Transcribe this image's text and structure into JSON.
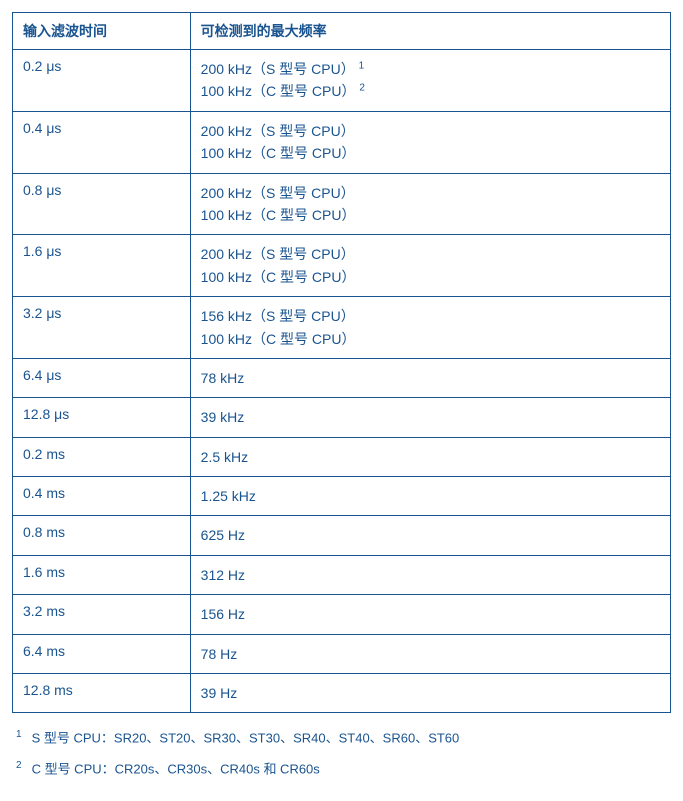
{
  "table": {
    "columns": [
      "输入滤波时间",
      "可检测到的最大频率"
    ],
    "col_widths": [
      "27%",
      "73%"
    ],
    "border_color": "#1a5490",
    "text_color": "#1a5490",
    "header_fontweight": "bold",
    "cell_fontsize": 14,
    "rows": [
      {
        "filter_time": "0.2 μs",
        "lines": [
          {
            "text": "200 kHz（S 型号 CPU）",
            "sup": "1"
          },
          {
            "text": "100 kHz（C 型号 CPU）",
            "sup": "2"
          }
        ]
      },
      {
        "filter_time": "0.4 μs",
        "lines": [
          {
            "text": "200 kHz（S 型号 CPU）"
          },
          {
            "text": "100 kHz（C 型号 CPU）"
          }
        ]
      },
      {
        "filter_time": "0.8 μs",
        "lines": [
          {
            "text": "200 kHz（S 型号 CPU）"
          },
          {
            "text": "100 kHz（C 型号 CPU）"
          }
        ]
      },
      {
        "filter_time": "1.6 μs",
        "lines": [
          {
            "text": "200 kHz（S 型号 CPU）"
          },
          {
            "text": "100 kHz（C 型号 CPU）"
          }
        ]
      },
      {
        "filter_time": "3.2 μs",
        "lines": [
          {
            "text": "156 kHz（S 型号 CPU）"
          },
          {
            "text": "100 kHz（C 型号 CPU）"
          }
        ]
      },
      {
        "filter_time": "6.4 μs",
        "lines": [
          {
            "text": "78 kHz"
          }
        ]
      },
      {
        "filter_time": "12.8 μs",
        "lines": [
          {
            "text": "39 kHz"
          }
        ]
      },
      {
        "filter_time": "0.2 ms",
        "lines": [
          {
            "text": "2.5 kHz"
          }
        ]
      },
      {
        "filter_time": "0.4 ms",
        "lines": [
          {
            "text": "1.25 kHz"
          }
        ]
      },
      {
        "filter_time": "0.8 ms",
        "lines": [
          {
            "text": "625 Hz"
          }
        ]
      },
      {
        "filter_time": "1.6 ms",
        "lines": [
          {
            "text": "312 Hz"
          }
        ]
      },
      {
        "filter_time": "3.2 ms",
        "lines": [
          {
            "text": "156 Hz"
          }
        ]
      },
      {
        "filter_time": "6.4 ms",
        "lines": [
          {
            "text": "78 Hz"
          }
        ]
      },
      {
        "filter_time": "12.8 ms",
        "lines": [
          {
            "text": "39 Hz"
          }
        ]
      }
    ]
  },
  "footnotes": [
    {
      "marker": "1",
      "text": "S 型号 CPU：SR20、ST20、SR30、ST30、SR40、ST40、SR60、ST60"
    },
    {
      "marker": "2",
      "text": "C 型号 CPU：CR20s、CR30s、CR40s 和 CR60s"
    }
  ],
  "footnote_fontsize": 13,
  "footnote_color": "#1a5490",
  "background_color": "#ffffff"
}
